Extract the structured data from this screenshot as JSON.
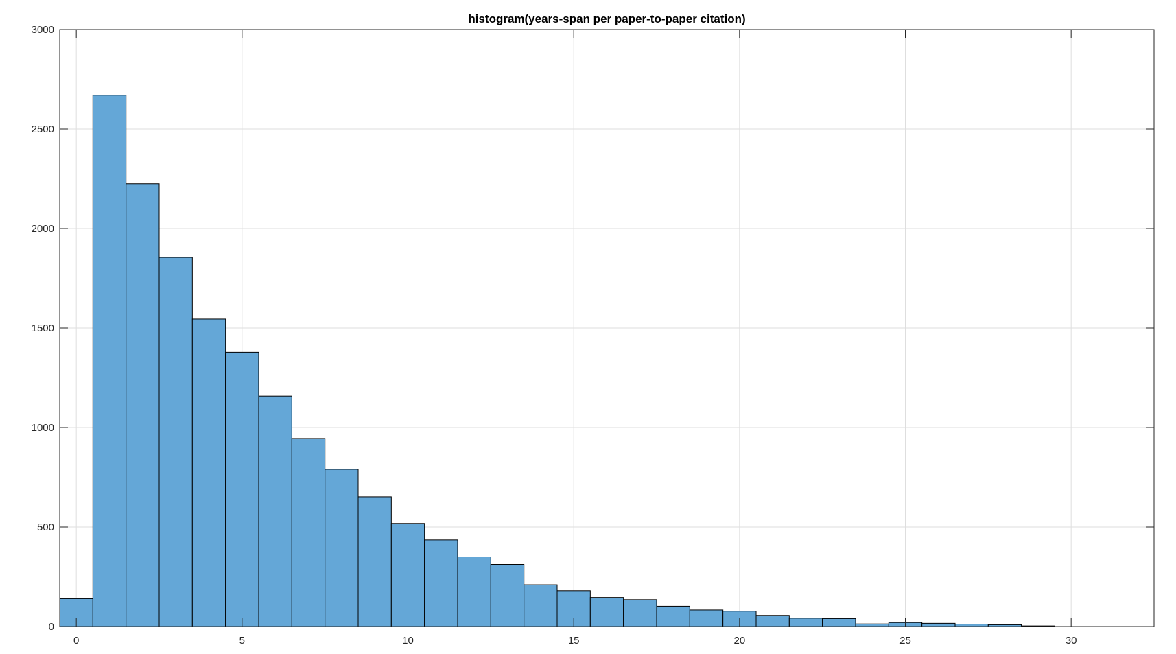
{
  "chart_data": {
    "type": "bar",
    "title": "histogram(years-span per paper-to-paper citation)",
    "xlabel": "",
    "ylabel": "",
    "xlim": [
      -0.5,
      32.5
    ],
    "ylim": [
      0,
      3000
    ],
    "xticks": [
      0,
      5,
      10,
      15,
      20,
      25,
      30
    ],
    "yticks": [
      0,
      500,
      1000,
      1500,
      2000,
      2500,
      3000
    ],
    "grid": true,
    "bin_width": 1,
    "bins": [
      {
        "center": 0,
        "count": 140
      },
      {
        "center": 1,
        "count": 2670
      },
      {
        "center": 2,
        "count": 2225
      },
      {
        "center": 3,
        "count": 1855
      },
      {
        "center": 4,
        "count": 1545
      },
      {
        "center": 5,
        "count": 1378
      },
      {
        "center": 6,
        "count": 1158
      },
      {
        "center": 7,
        "count": 945
      },
      {
        "center": 8,
        "count": 790
      },
      {
        "center": 9,
        "count": 652
      },
      {
        "center": 10,
        "count": 518
      },
      {
        "center": 11,
        "count": 435
      },
      {
        "center": 12,
        "count": 350
      },
      {
        "center": 13,
        "count": 312
      },
      {
        "center": 14,
        "count": 210
      },
      {
        "center": 15,
        "count": 180
      },
      {
        "center": 16,
        "count": 146
      },
      {
        "center": 17,
        "count": 135
      },
      {
        "center": 18,
        "count": 102
      },
      {
        "center": 19,
        "count": 83
      },
      {
        "center": 20,
        "count": 77
      },
      {
        "center": 21,
        "count": 56
      },
      {
        "center": 22,
        "count": 42
      },
      {
        "center": 23,
        "count": 40
      },
      {
        "center": 24,
        "count": 13
      },
      {
        "center": 25,
        "count": 20
      },
      {
        "center": 26,
        "count": 16
      },
      {
        "center": 27,
        "count": 12
      },
      {
        "center": 28,
        "count": 9
      },
      {
        "center": 29,
        "count": 3
      }
    ],
    "colors": {
      "bar_fill": "#64a7d7",
      "bar_edge": "#000000",
      "grid": "#dedede",
      "axis": "#262626"
    }
  }
}
